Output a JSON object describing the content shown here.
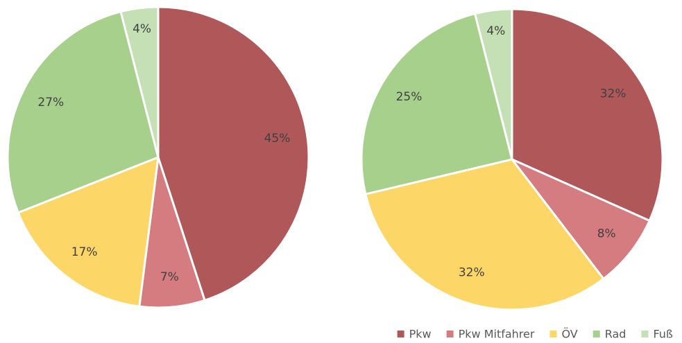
{
  "chart_data": [
    {
      "type": "pie",
      "categories": [
        "Pkw",
        "Pkw Mitfahrer",
        "ÖV",
        "Rad",
        "Fuß"
      ],
      "colors": [
        "#b0575a",
        "#d47c80",
        "#fcd667",
        "#a8d08d",
        "#c5e0b4"
      ],
      "values": [
        45,
        7,
        17,
        27,
        4
      ],
      "value_labels": [
        "45%",
        "7%",
        "17%",
        "27%",
        "4%"
      ],
      "legend": "bottom-right"
    },
    {
      "type": "pie",
      "values": [
        32,
        8,
        32,
        25,
        4
      ],
      "value_labels": [
        "32%",
        "8%",
        "32%",
        "25%",
        "4%"
      ]
    }
  ]
}
